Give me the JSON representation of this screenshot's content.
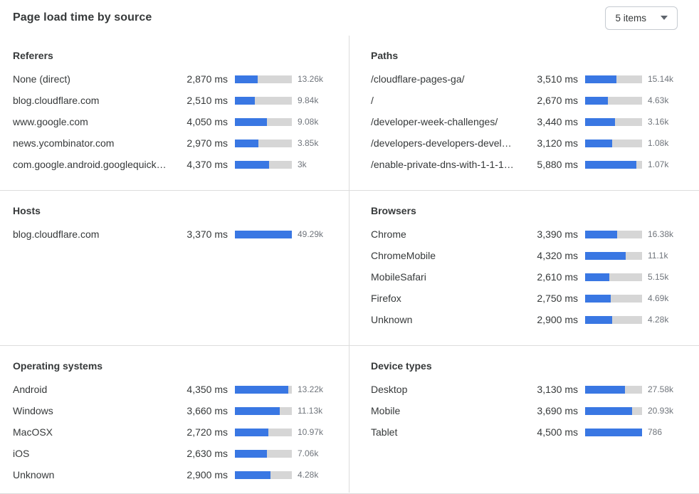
{
  "header": {
    "title": "Page load time by source",
    "items_select": {
      "value": "5 items",
      "icon": "chevron-down-icon"
    }
  },
  "colors": {
    "bar_fill": "#3977e3",
    "bar_track": "#d6d6d6",
    "divider": "#dcdcdc",
    "count_text": "#70757c"
  },
  "chart_data": {
    "type": "bar",
    "title": "Page load time by source",
    "value_unit": "ms",
    "legend_position": "none",
    "grid": false,
    "panels": [
      {
        "title": "Referers",
        "rows": [
          {
            "label": "None (direct)",
            "ms": 2870,
            "ms_display": "2,870 ms",
            "count_display": "13.26k",
            "bar_fill_pct": 40
          },
          {
            "label": "blog.cloudflare.com",
            "ms": 2510,
            "ms_display": "2,510 ms",
            "count_display": "9.84k",
            "bar_fill_pct": 35
          },
          {
            "label": "www.google.com",
            "ms": 4050,
            "ms_display": "4,050 ms",
            "count_display": "9.08k",
            "bar_fill_pct": 56
          },
          {
            "label": "news.ycombinator.com",
            "ms": 2970,
            "ms_display": "2,970 ms",
            "count_display": "3.85k",
            "bar_fill_pct": 41
          },
          {
            "label": "com.google.android.googlequicksearc...",
            "ms": 4370,
            "ms_display": "4,370 ms",
            "count_display": "3k",
            "bar_fill_pct": 60
          }
        ]
      },
      {
        "title": "Paths",
        "rows": [
          {
            "label": "/cloudflare-pages-ga/",
            "ms": 3510,
            "ms_display": "3,510 ms",
            "count_display": "15.14k",
            "bar_fill_pct": 55
          },
          {
            "label": "/",
            "ms": 2670,
            "ms_display": "2,670 ms",
            "count_display": "4.63k",
            "bar_fill_pct": 40
          },
          {
            "label": "/developer-week-challenges/",
            "ms": 3440,
            "ms_display": "3,440 ms",
            "count_display": "3.16k",
            "bar_fill_pct": 53
          },
          {
            "label": "/developers-developers-developers/",
            "ms": 3120,
            "ms_display": "3,120 ms",
            "count_display": "1.08k",
            "bar_fill_pct": 48
          },
          {
            "label": "/enable-private-dns-with-1-1-1-1-on-...",
            "ms": 5880,
            "ms_display": "5,880 ms",
            "count_display": "1.07k",
            "bar_fill_pct": 90
          }
        ]
      },
      {
        "title": "Hosts",
        "rows": [
          {
            "label": "blog.cloudflare.com",
            "ms": 3370,
            "ms_display": "3,370 ms",
            "count_display": "49.29k",
            "bar_fill_pct": 100
          }
        ]
      },
      {
        "title": "Browsers",
        "rows": [
          {
            "label": "Chrome",
            "ms": 3390,
            "ms_display": "3,390 ms",
            "count_display": "16.38k",
            "bar_fill_pct": 56
          },
          {
            "label": "ChromeMobile",
            "ms": 4320,
            "ms_display": "4,320 ms",
            "count_display": "11.1k",
            "bar_fill_pct": 71
          },
          {
            "label": "MobileSafari",
            "ms": 2610,
            "ms_display": "2,610 ms",
            "count_display": "5.15k",
            "bar_fill_pct": 43
          },
          {
            "label": "Firefox",
            "ms": 2750,
            "ms_display": "2,750 ms",
            "count_display": "4.69k",
            "bar_fill_pct": 45
          },
          {
            "label": "Unknown",
            "ms": 2900,
            "ms_display": "2,900 ms",
            "count_display": "4.28k",
            "bar_fill_pct": 47
          }
        ]
      },
      {
        "title": "Operating systems",
        "rows": [
          {
            "label": "Android",
            "ms": 4350,
            "ms_display": "4,350 ms",
            "count_display": "13.22k",
            "bar_fill_pct": 94
          },
          {
            "label": "Windows",
            "ms": 3660,
            "ms_display": "3,660 ms",
            "count_display": "11.13k",
            "bar_fill_pct": 79
          },
          {
            "label": "MacOSX",
            "ms": 2720,
            "ms_display": "2,720 ms",
            "count_display": "10.97k",
            "bar_fill_pct": 59
          },
          {
            "label": "iOS",
            "ms": 2630,
            "ms_display": "2,630 ms",
            "count_display": "7.06k",
            "bar_fill_pct": 56
          },
          {
            "label": "Unknown",
            "ms": 2900,
            "ms_display": "2,900 ms",
            "count_display": "4.28k",
            "bar_fill_pct": 63
          }
        ]
      },
      {
        "title": "Device types",
        "rows": [
          {
            "label": "Desktop",
            "ms": 3130,
            "ms_display": "3,130 ms",
            "count_display": "27.58k",
            "bar_fill_pct": 70
          },
          {
            "label": "Mobile",
            "ms": 3690,
            "ms_display": "3,690 ms",
            "count_display": "20.93k",
            "bar_fill_pct": 83
          },
          {
            "label": "Tablet",
            "ms": 4500,
            "ms_display": "4,500 ms",
            "count_display": "786",
            "bar_fill_pct": 100
          }
        ]
      }
    ]
  }
}
